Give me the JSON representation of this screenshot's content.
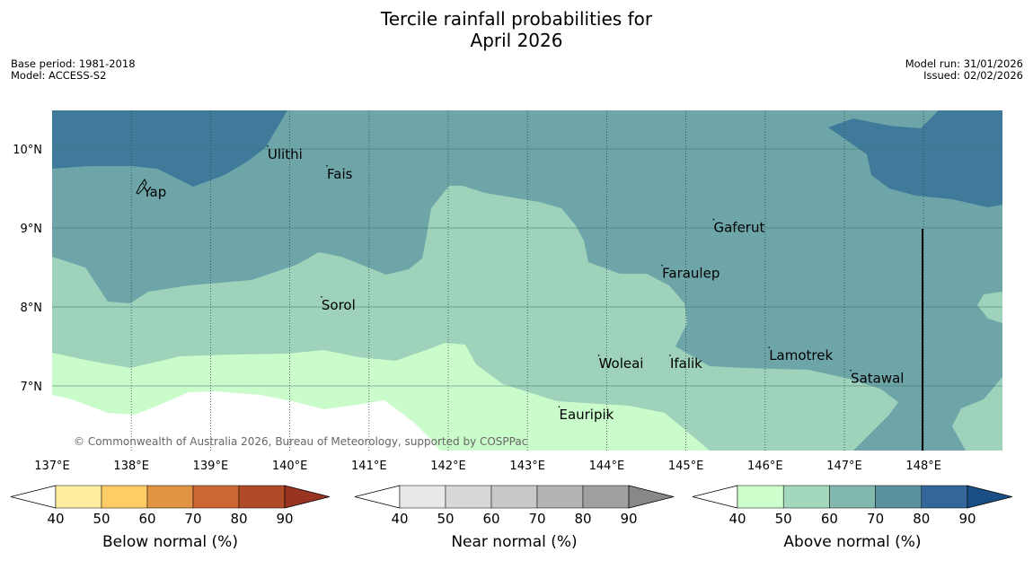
{
  "title": {
    "line1": "Tercile rainfall probabilities for",
    "line2": "April 2026"
  },
  "meta": {
    "base_period": "Base period: 1981-2018",
    "model": "Model: ACCESS-S2",
    "model_run": "Model run: 31/01/2026",
    "issued": "Issued: 02/02/2026"
  },
  "map": {
    "lon_range": [
      137,
      149
    ],
    "lat_range": [
      6.3,
      10.5
    ],
    "lon_ticks": [
      "137°E",
      "138°E",
      "139°E",
      "140°E",
      "141°E",
      "142°E",
      "143°E",
      "144°E",
      "145°E",
      "146°E",
      "147°E",
      "148°E"
    ],
    "lat_ticks": [
      "10°N",
      "9°N",
      "8°N",
      "7°N"
    ],
    "copyright": "© Commonwealth of Australia 2026, Bureau of Meteorology, supported by COSPPac",
    "places": [
      {
        "name": "Ulithi",
        "lon": 139.72,
        "lat": 9.98
      },
      {
        "name": "Fais",
        "lon": 140.47,
        "lat": 9.73
      },
      {
        "name": "Yap",
        "lon": 138.15,
        "lat": 9.5
      },
      {
        "name": "Gaferut",
        "lon": 145.35,
        "lat": 9.05
      },
      {
        "name": "Faraulep",
        "lon": 144.7,
        "lat": 8.47
      },
      {
        "name": "Sorol",
        "lon": 140.4,
        "lat": 8.07
      },
      {
        "name": "Lamotrek",
        "lon": 146.05,
        "lat": 7.43
      },
      {
        "name": "Woleai",
        "lon": 143.9,
        "lat": 7.33
      },
      {
        "name": "Ifalik",
        "lon": 144.8,
        "lat": 7.33
      },
      {
        "name": "Satawal",
        "lon": 147.08,
        "lat": 7.14
      },
      {
        "name": "Eauripik",
        "lon": 143.4,
        "lat": 6.68
      }
    ],
    "colors": {
      "above_70_80": "#407a9a",
      "above_60_70": "#6ea5a8",
      "above_50_60": "#9ed2ba",
      "above_40_50": "#cafbca",
      "no_signal": "#ffffff"
    }
  },
  "colorbars": [
    {
      "label": "Below normal (%)",
      "ticks": [
        "40",
        "50",
        "60",
        "70",
        "80",
        "90"
      ],
      "colors": [
        "#ffffff",
        "#ffeea0",
        "#ffcc66",
        "#e09444",
        "#cc6633",
        "#b04a28",
        "#993322"
      ]
    },
    {
      "label": "Near normal (%)",
      "ticks": [
        "40",
        "50",
        "60",
        "70",
        "80",
        "90"
      ],
      "colors": [
        "#ffffff",
        "#e8e8e8",
        "#d8d8d8",
        "#c8c8c8",
        "#b4b4b4",
        "#a0a0a0",
        "#888888"
      ]
    },
    {
      "label": "Above normal (%)",
      "ticks": [
        "40",
        "50",
        "60",
        "70",
        "80",
        "90"
      ],
      "colors": [
        "#ffffff",
        "#ccffcc",
        "#a4d8bd",
        "#82b8ae",
        "#5b92a0",
        "#336699",
        "#1a4f86"
      ]
    }
  ]
}
